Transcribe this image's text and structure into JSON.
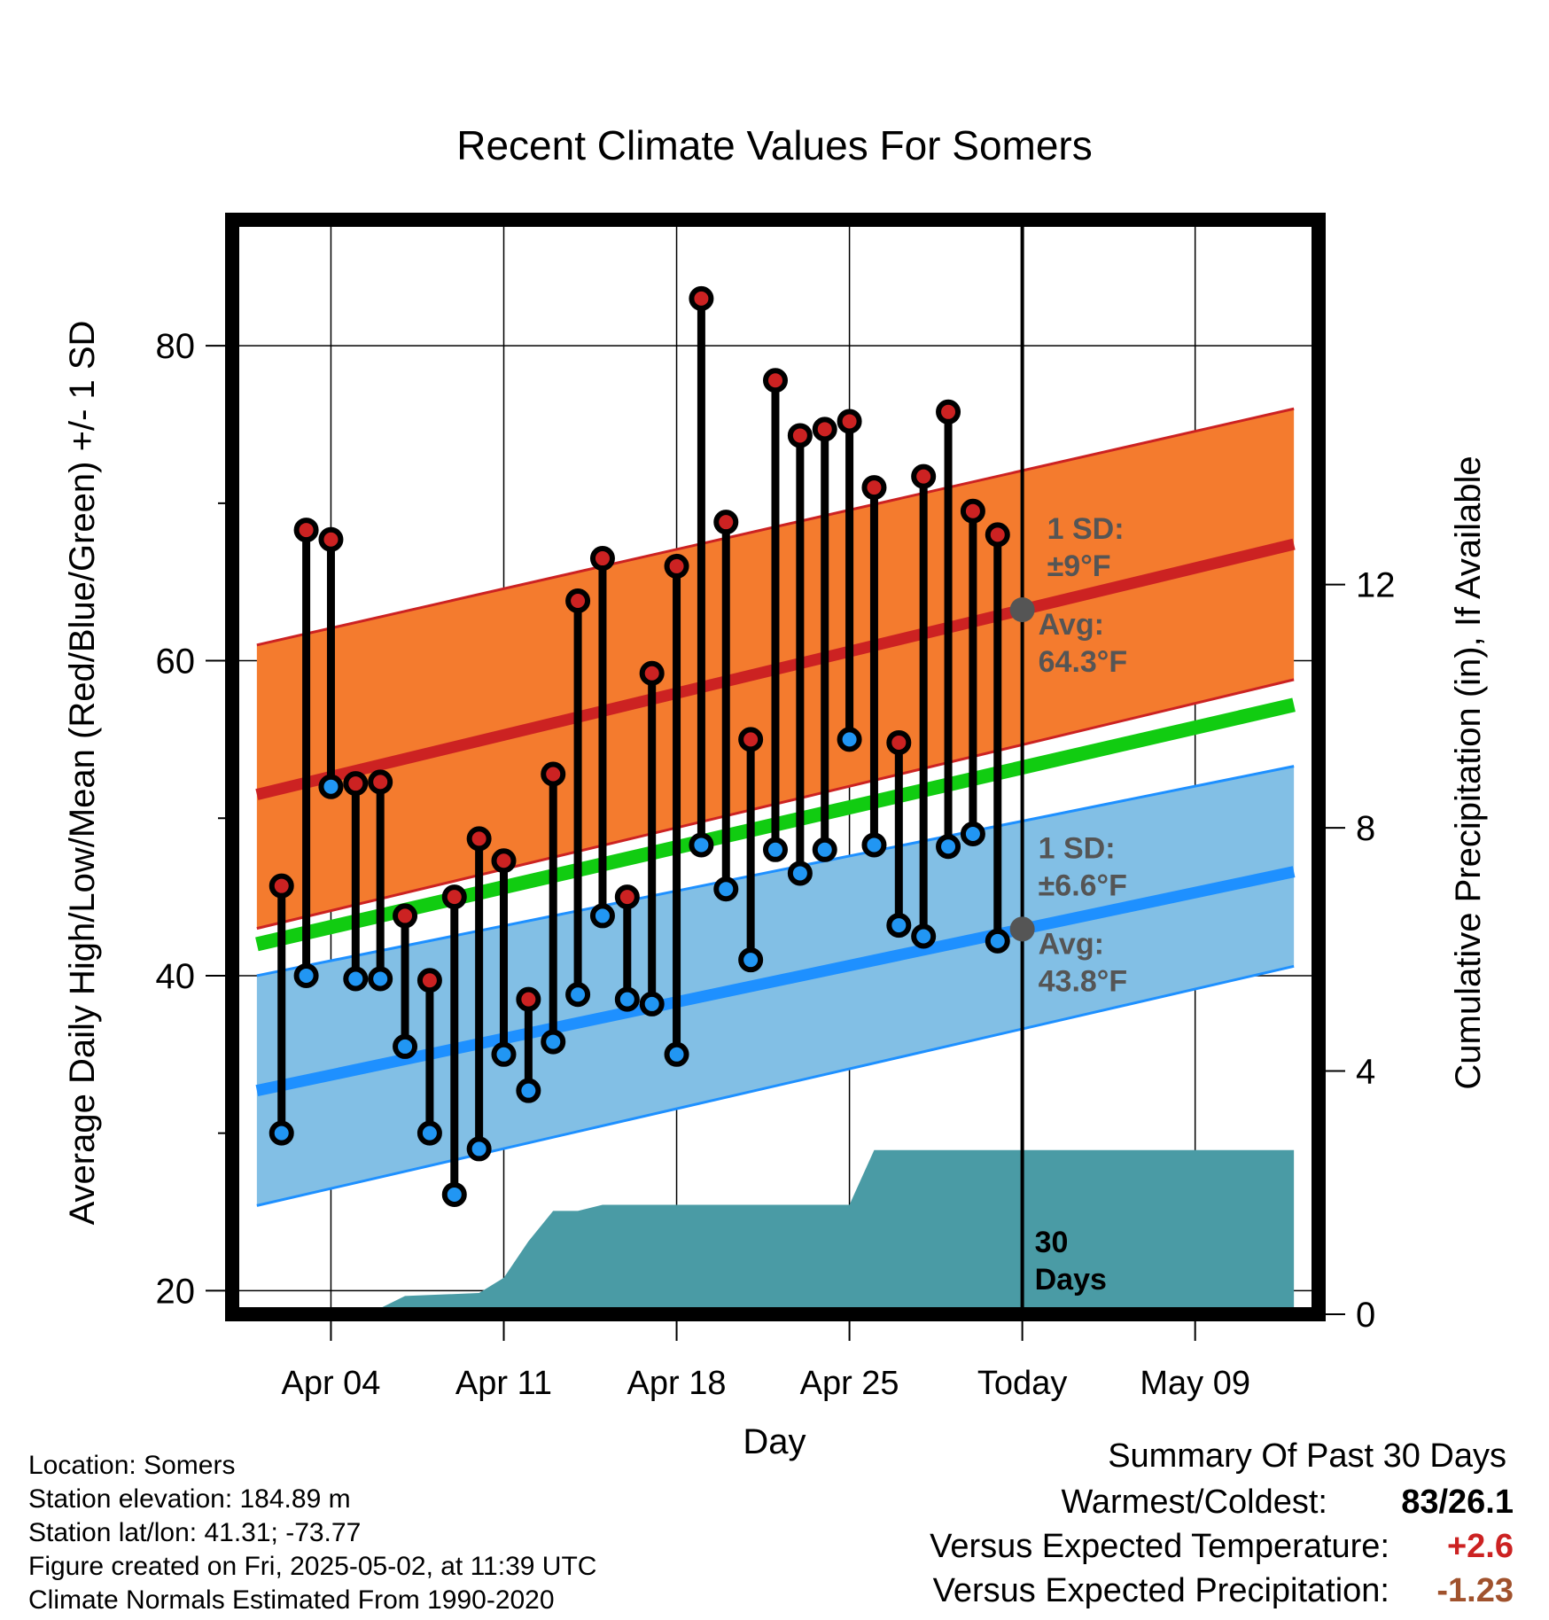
{
  "chart_data": {
    "type": "line",
    "title": "Recent Climate Values For Somers",
    "xlabel": "Day",
    "ylabel": "Average Daily High/Low/Mean (Red/Blue/Green) +/- 1 SD",
    "y2label": "Cumulative Precipitation (in), If Available",
    "ylim": [
      18.5,
      88
    ],
    "y2lim": [
      0,
      18
    ],
    "xlim_days": [
      -1,
      43
    ],
    "yticks": [
      20,
      40,
      60,
      80
    ],
    "ytick_labels": [
      "20",
      "40",
      "60",
      "80"
    ],
    "y2ticks": [
      0,
      4,
      8,
      12
    ],
    "y2tick_labels": [
      "0",
      "4",
      "8",
      "12"
    ],
    "xtick_days": [
      3,
      10,
      17,
      24,
      31,
      38
    ],
    "xtick_labels": [
      "Apr 04",
      "Apr 11",
      "Apr 18",
      "Apr 25",
      "Today",
      "May 09"
    ],
    "today_day": 31,
    "days": [
      1,
      2,
      3,
      4,
      5,
      6,
      7,
      8,
      9,
      10,
      11,
      12,
      13,
      14,
      15,
      16,
      17,
      18,
      19,
      20,
      21,
      22,
      23,
      24,
      25,
      26,
      27,
      28,
      29,
      30
    ],
    "daily_highs": [
      45.7,
      68.3,
      67.7,
      52.2,
      52.3,
      43.8,
      39.7,
      45.0,
      48.7,
      47.3,
      38.5,
      52.8,
      63.8,
      66.5,
      45.0,
      59.2,
      66.0,
      83.0,
      68.8,
      55.0,
      77.8,
      74.3,
      74.7,
      75.2,
      71.0,
      54.8,
      71.7,
      75.8,
      69.5,
      68.0
    ],
    "daily_lows": [
      30.0,
      40.0,
      52.0,
      39.8,
      39.8,
      35.5,
      30.0,
      26.1,
      29.0,
      35.0,
      32.7,
      35.8,
      38.8,
      43.8,
      38.5,
      38.2,
      35.0,
      48.3,
      45.5,
      41.0,
      48.0,
      46.5,
      48.0,
      55.0,
      48.3,
      43.2,
      42.5,
      48.2,
      49.0,
      42.2
    ],
    "series": [
      {
        "name": "Average high",
        "color": "#cc2222",
        "x": [
          0,
          42
        ],
        "values": [
          51.5,
          67.4
        ]
      },
      {
        "name": "High +1 SD",
        "color": "#cc2222",
        "x": [
          0,
          42
        ],
        "values": [
          61.0,
          76.0
        ]
      },
      {
        "name": "High -1 SD",
        "color": "#cc2222",
        "x": [
          0,
          42
        ],
        "values": [
          43.0,
          58.8
        ]
      },
      {
        "name": "Average mean",
        "color": "#22cc22",
        "x": [
          0,
          42
        ],
        "values": [
          42.0,
          57.2
        ]
      },
      {
        "name": "Average low",
        "color": "#1e90ff",
        "x": [
          0,
          42
        ],
        "values": [
          32.7,
          46.6
        ]
      },
      {
        "name": "Low +1 SD",
        "color": "#1e90ff",
        "x": [
          0,
          42
        ],
        "values": [
          40.0,
          53.3
        ]
      },
      {
        "name": "Low -1 SD",
        "color": "#1e90ff",
        "x": [
          0,
          42
        ],
        "values": [
          25.4,
          40.6
        ]
      }
    ],
    "precip_cumulative": {
      "x": [
        0,
        4,
        5,
        6,
        9,
        10,
        11,
        12,
        13,
        14,
        15,
        24,
        25,
        42
      ],
      "values": [
        0,
        0,
        0.1,
        0.3,
        0.35,
        0.6,
        1.2,
        1.7,
        1.7,
        1.8,
        1.8,
        1.8,
        2.7,
        2.7
      ]
    },
    "annotations": {
      "high_sd_label": "1 SD:",
      "high_sd_value": "±9°F",
      "high_avg_label": "Avg:",
      "high_avg_value": "64.3°F",
      "low_sd_label": "1 SD:",
      "low_sd_value": "±6.6°F",
      "low_avg_label": "Avg:",
      "low_avg_value": "43.8°F",
      "period_line1": "30",
      "period_line2": "Days"
    },
    "annotation_color": "#555555",
    "colors": {
      "high_band": "#f47b2e",
      "high_line": "#cc2222",
      "mean_line": "#11cc11",
      "low_band": "#82bfe5",
      "low_line": "#1e90ff",
      "precip": "#4a9ba5",
      "high_dot": "#cc2222",
      "low_dot": "#2196f3",
      "avg_marker": "#555555"
    }
  },
  "info": {
    "location": "Location: Somers",
    "elevation": "Station elevation: 184.89 m",
    "latlon": "Station lat/lon: 41.31; -73.77",
    "created": "Figure created on Fri, 2025-05-02, at 11:39 UTC",
    "normals": "Climate Normals Estimated From 1990-2020"
  },
  "summary": {
    "title": "Summary Of Past 30 Days",
    "warm_cold_label": "Warmest/Coldest:",
    "warm_cold_value": "83/26.1",
    "temp_label": "Versus Expected Temperature:",
    "temp_value": "+2.6",
    "temp_color": "#cc2222",
    "precip_label": "Versus Expected Precipitation:",
    "precip_value": "-1.23",
    "precip_color": "#a0522d"
  }
}
